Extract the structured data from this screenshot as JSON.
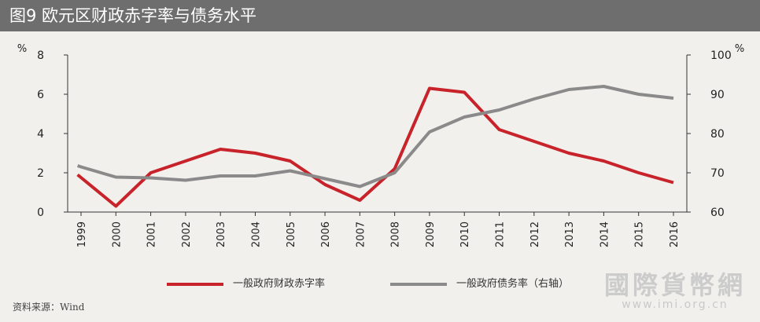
{
  "title": "图9  欧元区财政赤字率与债务水平",
  "source": "资料来源：Wind",
  "watermark": {
    "text": "國際貨幣網",
    "url": "www.imi.org.cn"
  },
  "chart_data": {
    "type": "line",
    "categories": [
      "1999",
      "2000",
      "2001",
      "2002",
      "2003",
      "2004",
      "2005",
      "2006",
      "2007",
      "2008",
      "2009",
      "2010",
      "2011",
      "2012",
      "2013",
      "2014",
      "2015",
      "2016"
    ],
    "left_axis": {
      "unit": "%",
      "ylim": [
        0,
        8
      ],
      "ticks": [
        0,
        2,
        4,
        6,
        8
      ]
    },
    "right_axis": {
      "unit": "%",
      "ylim": [
        60,
        100
      ],
      "ticks": [
        60,
        70,
        80,
        90,
        100
      ]
    },
    "grid": false,
    "legend_position": "bottom",
    "series": [
      {
        "name": "一般政府财政赤字率",
        "axis": "left",
        "color": "#c8222a",
        "x": [
          1998.9,
          2000,
          2001,
          2002,
          2003,
          2004,
          2005,
          2006,
          2007,
          2008,
          2009,
          2010,
          2011,
          2012,
          2013,
          2014,
          2015,
          2016
        ],
        "values": [
          1.9,
          0.3,
          2.0,
          2.6,
          3.2,
          3.0,
          2.6,
          1.4,
          0.6,
          2.2,
          6.3,
          6.1,
          4.2,
          3.6,
          3.0,
          2.6,
          2.0,
          1.5
        ]
      },
      {
        "name": "一般政府债务率（右轴）",
        "axis": "right",
        "color": "#8a8a8a",
        "x": [
          1998.9,
          1999,
          2000,
          2001,
          2002,
          2003,
          2004,
          2005,
          2006,
          2007,
          2008,
          2009,
          2010,
          2011,
          2012,
          2013,
          2014,
          2015,
          2016
        ],
        "values": [
          71.8,
          71.5,
          68.9,
          68.7,
          68.1,
          69.2,
          69.2,
          70.5,
          68.5,
          66.5,
          70.0,
          80.4,
          84.2,
          86.0,
          88.8,
          91.2,
          92.0,
          90.0,
          89.0
        ]
      }
    ]
  }
}
